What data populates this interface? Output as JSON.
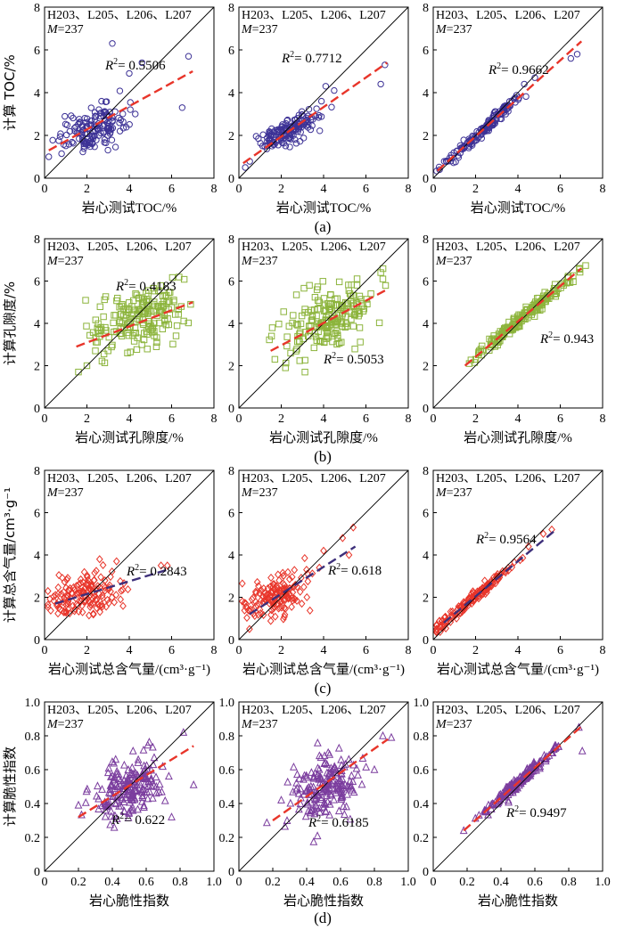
{
  "chart_data": {
    "type": "scatter",
    "figure_rows": [
      {
        "label": "(a)",
        "y_axis_label": "计算 TOC/%",
        "x_axis_label": "岩心测试TOC/%",
        "xlim": [
          0,
          8
        ],
        "ylim": [
          0,
          8
        ],
        "xticks": [
          0,
          2,
          4,
          6,
          8
        ],
        "yticks": [
          0,
          2,
          4,
          6,
          8
        ],
        "marker": "circle",
        "marker_color": "#3d3296",
        "fit_color": "#e8352a",
        "panels": [
          {
            "well_label": "H203、L205、L206、L207",
            "m_prefix": "M",
            "m_value": "=237",
            "r2_value": "= 0.5506",
            "fit_line": {
              "x": [
                0.2,
                7.0
              ],
              "y": [
                1.3,
                5.0
              ]
            }
          },
          {
            "well_label": "H203、L205、L206、L207",
            "m_prefix": "M",
            "m_value": "=237",
            "r2_value": "= 0.7712",
            "fit_line": {
              "x": [
                0.2,
                7.0
              ],
              "y": [
                0.7,
                5.4
              ]
            }
          },
          {
            "well_label": "H203、L205、L206、L207",
            "m_prefix": "M",
            "m_value": "=237",
            "r2_value": "= 0.9662",
            "fit_line": {
              "x": [
                0.2,
                7.0
              ],
              "y": [
                0.35,
                6.4
              ]
            }
          }
        ]
      },
      {
        "label": "(b)",
        "y_axis_label": "计算孔隙度/%",
        "x_axis_label": "岩心测试孔隙度/%",
        "xlim": [
          0,
          8
        ],
        "ylim": [
          0,
          8
        ],
        "xticks": [
          0,
          2,
          4,
          6,
          8
        ],
        "yticks": [
          0,
          2,
          4,
          6,
          8
        ],
        "marker": "square",
        "marker_color": "#8cb43c",
        "fit_color": "#e8352a",
        "panels": [
          {
            "well_label": "H203、L205、L206、L207",
            "m_prefix": "M",
            "m_value": "=237",
            "r2_value": "= 0.4183",
            "fit_line": {
              "x": [
                1.5,
                7.0
              ],
              "y": [
                2.9,
                5.0
              ]
            }
          },
          {
            "well_label": "H203、L205、L206、L207",
            "m_prefix": "M",
            "m_value": "=237",
            "r2_value": "= 0.5053",
            "fit_line": {
              "x": [
                1.5,
                7.0
              ],
              "y": [
                2.7,
                5.6
              ]
            }
          },
          {
            "well_label": "H203、L205、L206、L207",
            "m_prefix": "M",
            "m_value": "=237",
            "r2_value": "= 0.943",
            "fit_line": {
              "x": [
                1.5,
                7.0
              ],
              "y": [
                2.0,
                6.6
              ]
            }
          }
        ]
      },
      {
        "label": "(c)",
        "y_axis_label": "计算总含气量/cm³·g⁻¹",
        "x_axis_label": "岩心测试总含气量/(cm³·g⁻¹)",
        "xlim": [
          0,
          8
        ],
        "ylim": [
          0,
          8
        ],
        "xticks": [
          0,
          2,
          4,
          6,
          8
        ],
        "yticks": [
          0,
          2,
          4,
          6,
          8
        ],
        "marker": "diamond",
        "marker_color": "#e8352a",
        "fit_color": "#3d2f7a",
        "panels": [
          {
            "well_label": "H203、L205、L206、L207",
            "m_prefix": "M",
            "m_value": "=237",
            "r2_value": "= 0.2843",
            "fit_line": {
              "x": [
                0.5,
                5.8
              ],
              "y": [
                1.7,
                3.3
              ]
            }
          },
          {
            "well_label": "H203、L205、L206、L207",
            "m_prefix": "M",
            "m_value": "=237",
            "r2_value": "= 0.618",
            "fit_line": {
              "x": [
                0.5,
                5.5
              ],
              "y": [
                1.2,
                4.4
              ]
            }
          },
          {
            "well_label": "H203、L205、L206、L207",
            "m_prefix": "M",
            "m_value": "=237",
            "r2_value": "= 0.9564",
            "fit_line": {
              "x": [
                0.5,
                5.8
              ],
              "y": [
                0.8,
                5.2
              ]
            }
          }
        ]
      },
      {
        "label": "(d)",
        "y_axis_label": "计算脆性指数",
        "x_axis_label": "岩心脆性指数",
        "xlim": [
          0,
          1.0
        ],
        "ylim": [
          0,
          1.0
        ],
        "xticks": [
          0,
          0.2,
          0.4,
          0.6,
          0.8,
          1.0
        ],
        "yticks": [
          0,
          0.2,
          0.4,
          0.6,
          0.8,
          1.0
        ],
        "marker": "triangle",
        "marker_color": "#7b3d9e",
        "fit_color": "#e8352a",
        "panels": [
          {
            "well_label": "H203、L205、L206、L207",
            "m_prefix": "M",
            "m_value": "=237",
            "r2_value": "= 0.622",
            "fit_line": {
              "x": [
                0.2,
                0.88
              ],
              "y": [
                0.32,
                0.74
              ]
            }
          },
          {
            "well_label": "H203、L205、L206、L207",
            "m_prefix": "M",
            "m_value": "=237",
            "r2_value": "= 0.6185",
            "fit_line": {
              "x": [
                0.2,
                0.88
              ],
              "y": [
                0.3,
                0.78
              ]
            }
          },
          {
            "well_label": "H203、L205、L206、L207",
            "m_prefix": "M",
            "m_value": "=237",
            "r2_value": "= 0.9497",
            "fit_line": {
              "x": [
                0.18,
                0.88
              ],
              "y": [
                0.24,
                0.86
              ]
            }
          }
        ]
      }
    ],
    "scatter_points": [
      [
        {
          "center": [
            2.2,
            2.3
          ],
          "spread_x": 0.8,
          "spread_y": 0.5,
          "n": 150,
          "extra": [
            [
              6.8,
              5.7
            ],
            [
              3.2,
              6.3
            ],
            [
              6.5,
              3.3
            ],
            [
              0.2,
              1.0
            ],
            [
              4.6,
              5.4
            ],
            [
              4.0,
              4.9
            ]
          ]
        },
        {
          "center": [
            2.3,
            2.2
          ],
          "spread_x": 0.7,
          "spread_y": 0.3,
          "n": 150,
          "extra": [
            [
              6.9,
              5.3
            ],
            [
              6.7,
              4.4
            ],
            [
              0.3,
              0.5
            ],
            [
              4.1,
              4.3
            ],
            [
              4.5,
              4.1
            ],
            [
              3.9,
              3.6
            ]
          ]
        },
        {
          "center": [
            2.4,
            2.4
          ],
          "spread_x": 0.9,
          "spread_y": 0.9,
          "n": 150,
          "extra": [
            [
              6.8,
              5.8
            ],
            [
              6.5,
              5.6
            ],
            [
              4.8,
              4.7
            ],
            [
              4.3,
              4.4
            ],
            [
              0.3,
              0.4
            ],
            [
              0.7,
              0.8
            ]
          ]
        }
      ],
      [
        {
          "center": [
            4.4,
            4.3
          ],
          "spread_x": 1.1,
          "spread_y": 0.7,
          "n": 190,
          "extra": [
            [
              1.6,
              1.7
            ],
            [
              2.0,
              2.0
            ],
            [
              2.4,
              2.7
            ],
            [
              6.9,
              4.9
            ]
          ]
        },
        {
          "center": [
            4.3,
            4.3
          ],
          "spread_x": 1.1,
          "spread_y": 0.8,
          "n": 190,
          "extra": [
            [
              1.7,
              2.3
            ],
            [
              2.2,
              1.9
            ],
            [
              6.7,
              6.4
            ],
            [
              6.8,
              6.1
            ]
          ]
        },
        {
          "center": [
            4.3,
            4.3
          ],
          "spread_x": 1.1,
          "spread_y": 1.1,
          "n": 190,
          "extra": [
            [
              1.7,
              2.1
            ],
            [
              2.0,
              2.3
            ],
            [
              6.9,
              6.6
            ]
          ]
        }
      ],
      [
        {
          "center": [
            1.9,
            2.1
          ],
          "spread_x": 0.9,
          "spread_y": 0.45,
          "n": 150,
          "extra": [
            [
              2.6,
              3.8
            ],
            [
              5.8,
              3.5
            ],
            [
              5.5,
              3.5
            ],
            [
              3.4,
              3.7
            ],
            [
              0.9,
              1.3
            ]
          ]
        },
        {
          "center": [
            1.8,
            2.1
          ],
          "spread_x": 0.8,
          "spread_y": 0.5,
          "n": 150,
          "extra": [
            [
              5.4,
              5.3
            ],
            [
              4.9,
              4.8
            ],
            [
              4.0,
              4.2
            ],
            [
              3.8,
              3.4
            ],
            [
              0.5,
              0.5
            ],
            [
              5.2,
              4.0
            ]
          ]
        },
        {
          "center": [
            1.9,
            1.9
          ],
          "spread_x": 0.9,
          "spread_y": 0.9,
          "n": 150,
          "extra": [
            [
              5.6,
              5.2
            ],
            [
              5.2,
              5.0
            ],
            [
              4.5,
              4.4
            ],
            [
              0.6,
              0.8
            ]
          ]
        }
      ],
      [
        {
          "center": [
            0.5,
            0.5
          ],
          "spread_x": 0.1,
          "spread_y": 0.08,
          "n": 190,
          "extra": [
            [
              0.2,
              0.39
            ],
            [
              0.82,
              0.82
            ],
            [
              0.88,
              0.51
            ],
            [
              0.75,
              0.32
            ],
            [
              0.66,
              0.46
            ]
          ]
        },
        {
          "center": [
            0.5,
            0.5
          ],
          "spread_x": 0.1,
          "spread_y": 0.09,
          "n": 190,
          "extra": [
            [
              0.25,
              0.42
            ],
            [
              0.85,
              0.8
            ],
            [
              0.9,
              0.79
            ],
            [
              0.8,
              0.6
            ]
          ]
        },
        {
          "center": [
            0.5,
            0.5
          ],
          "spread_x": 0.1,
          "spread_y": 0.1,
          "n": 190,
          "extra": [
            [
              0.18,
              0.24
            ],
            [
              0.88,
              0.71
            ],
            [
              0.86,
              0.85
            ]
          ]
        }
      ]
    ]
  }
}
